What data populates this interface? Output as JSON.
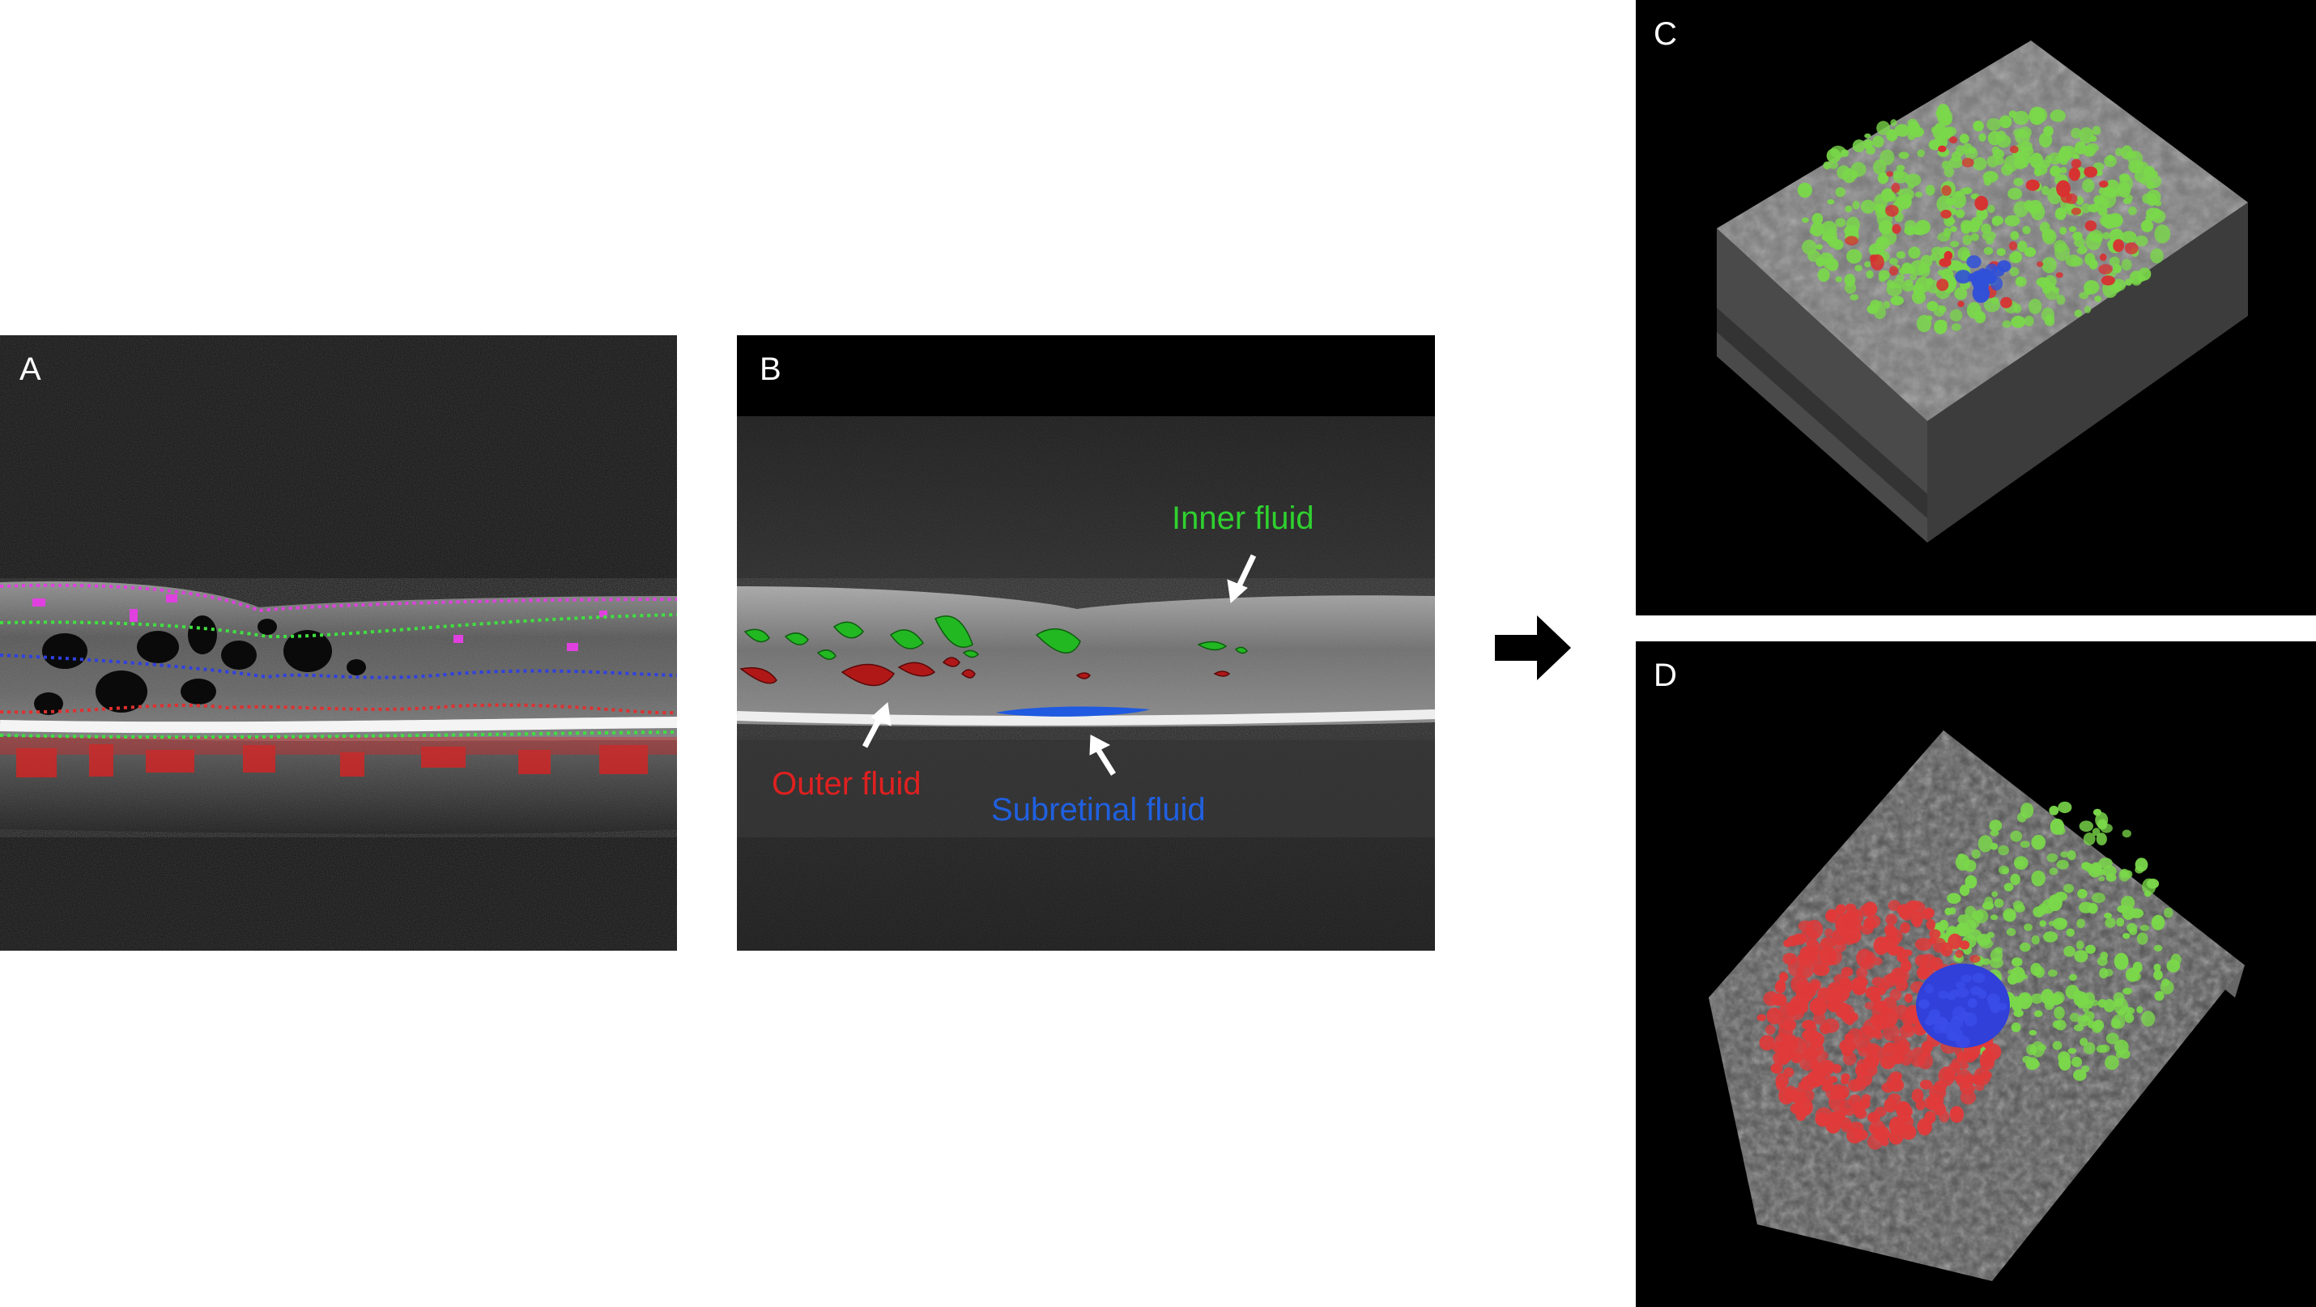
{
  "panels": {
    "a": {
      "letter": "A"
    },
    "b": {
      "letter": "B",
      "labels": {
        "inner": "Inner fluid",
        "outer": "Outer fluid",
        "subretinal": "Subretinal fluid"
      }
    },
    "c": {
      "letter": "C"
    },
    "d": {
      "letter": "D"
    }
  },
  "colors": {
    "inner_fluid": "#2fd12f",
    "outer_fluid": "#e02020",
    "subretinal_fluid": "#2060e0",
    "layer_magenta": "#e040e0",
    "layer_green": "#40e040",
    "layer_blue": "#3040e0",
    "layer_red": "#e03030"
  },
  "icons": [
    "right-arrow-icon",
    "pointer-arrow-icon"
  ]
}
